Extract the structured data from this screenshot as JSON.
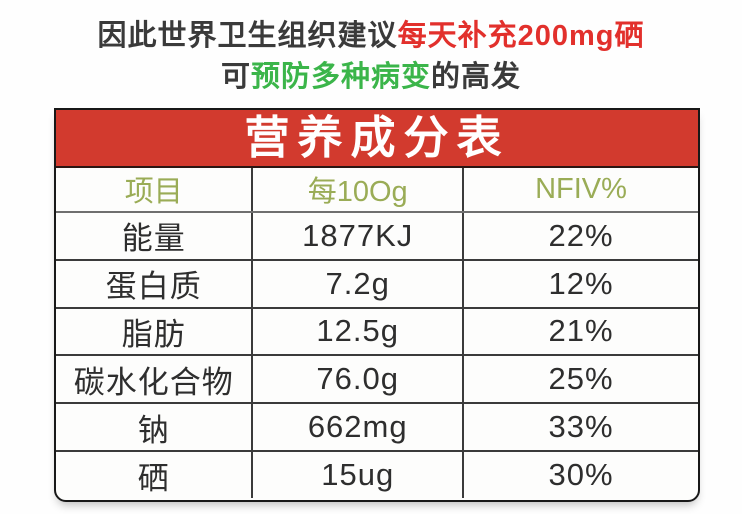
{
  "intro": {
    "line1": {
      "black": "因此世界卫生组织建议",
      "red": "每天补充200mg硒"
    },
    "line2": {
      "black_start": "可",
      "green": "预防多种病变",
      "black_end": "的高发"
    }
  },
  "table": {
    "title": "营养成分表",
    "columns": {
      "item": "项目",
      "per100g": "每10Og",
      "nfiv": "NFIV%"
    },
    "rows": [
      {
        "item": "能量",
        "per100g": "1877KJ",
        "nfiv": "22%"
      },
      {
        "item": "蛋白质",
        "per100g": "7.2g",
        "nfiv": "12%"
      },
      {
        "item": "脂肪",
        "per100g": "12.5g",
        "nfiv": "21%"
      },
      {
        "item": "碳水化合物",
        "per100g": "76.0g",
        "nfiv": "25%"
      },
      {
        "item": "钠",
        "per100g": "662mg",
        "nfiv": "33%"
      },
      {
        "item": "硒",
        "per100g": "15ug",
        "nfiv": "30%"
      }
    ]
  },
  "colors": {
    "banner_red": "#d23a2e",
    "headline_red": "#e2302c",
    "headline_green": "#3bb54a",
    "column_header_olive": "#9aac56",
    "text_dark": "#3a3a3a",
    "grid_line": "#3b3b3b",
    "title_text": "#ffffff",
    "background": "#fefefe"
  }
}
